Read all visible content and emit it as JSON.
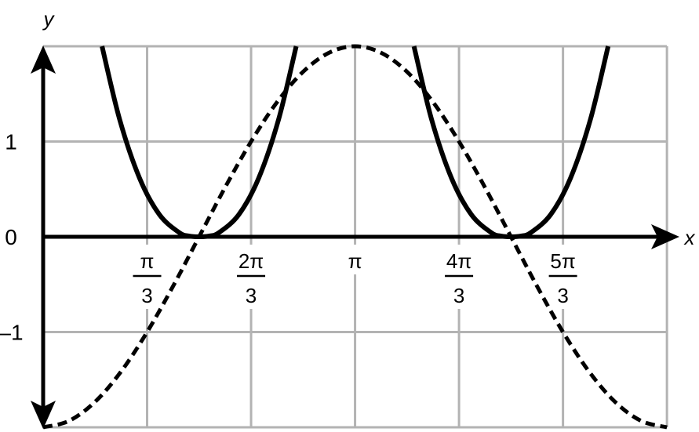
{
  "chart_data": {
    "type": "line",
    "xlabel": "x",
    "ylabel": "y",
    "xlim_radians": [
      0,
      6.2832
    ],
    "ylim": [
      -2,
      2
    ],
    "grid": true,
    "x_ticks": [
      {
        "value": 1.0472,
        "num": "π",
        "den": "3"
      },
      {
        "value": 2.0944,
        "num": "2π",
        "den": "3"
      },
      {
        "value": 3.1416,
        "num": "π",
        "den": ""
      },
      {
        "value": 4.1888,
        "num": "4π",
        "den": "3"
      },
      {
        "value": 5.236,
        "num": "5π",
        "den": "3"
      }
    ],
    "y_ticks": [
      {
        "value": 1,
        "label": "1"
      },
      {
        "value": 0,
        "label": "0"
      },
      {
        "value": -1,
        "label": "–1"
      }
    ],
    "series": [
      {
        "style": "dashed",
        "color": "#000000",
        "x": [
          0,
          0.2618,
          0.5236,
          0.7854,
          1.0472,
          1.309,
          1.5708,
          1.8326,
          2.0944,
          2.3562,
          2.618,
          2.8798,
          3.1416,
          3.4034,
          3.6652,
          3.927,
          4.1888,
          4.4506,
          4.7124,
          4.9742,
          5.236,
          5.4978,
          5.7596,
          6.0214,
          6.2832
        ],
        "y": [
          -2,
          -1.932,
          -1.732,
          -1.414,
          -1,
          -0.518,
          0,
          0.518,
          1,
          1.414,
          1.732,
          1.932,
          2,
          1.932,
          1.732,
          1.414,
          1,
          0.518,
          0,
          -0.518,
          -1,
          -1.414,
          -1.732,
          -1.932,
          -2
        ]
      },
      {
        "style": "solid",
        "color": "#000000",
        "x": [
          0.593,
          0.771,
          0.971,
          1.171,
          1.371,
          1.471,
          1.571,
          1.671,
          1.771,
          1.971,
          2.171,
          2.371,
          2.549
        ],
        "y": [
          2,
          1.23,
          0.616,
          0.233,
          0.044,
          0.008,
          0,
          0.008,
          0.044,
          0.233,
          0.616,
          1.23,
          2
        ]
      },
      {
        "style": "solid",
        "color": "#000000",
        "x": [
          3.735,
          3.913,
          4.113,
          4.313,
          4.513,
          4.613,
          4.712,
          4.812,
          4.912,
          5.112,
          5.312,
          5.512,
          5.691
        ],
        "y": [
          2,
          1.23,
          0.616,
          0.233,
          0.044,
          0.008,
          0,
          0.008,
          0.044,
          0.233,
          0.616,
          1.23,
          2
        ]
      }
    ],
    "grid_color": "#b3b3b3"
  }
}
